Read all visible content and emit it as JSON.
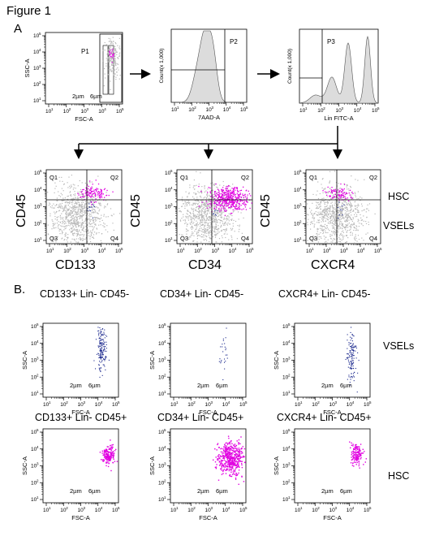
{
  "figure_title": "Figure 1",
  "section_a": "A",
  "section_b": "B.",
  "gating": {
    "fsc_ssc": {
      "x_label": "FSC-A",
      "y_label": "SSC-A",
      "gate": "P1",
      "size_1": "2µm",
      "size_2": "6µm"
    },
    "viability": {
      "x_label": "7AAD-A",
      "y_label": "Count(x 1,000)",
      "gate": "P2"
    },
    "lineage": {
      "x_label": "Lin FITC-A",
      "y_label": "Count(x 1,000)",
      "gate": "P3"
    }
  },
  "quadrants": {
    "q1": "Q1",
    "q2": "Q2",
    "q3": "Q3",
    "q4": "Q4",
    "y_marker": "CD45",
    "x_markers": [
      "CD133",
      "CD34",
      "CXCR4"
    ],
    "hsc": "HSC",
    "vsels": "VSELs"
  },
  "populations": {
    "row1_titles": [
      "CD133+ Lin- CD45-",
      "CD34+ Lin- CD45-",
      "CXCR4+ Lin- CD45-"
    ],
    "row2_titles": [
      "CD133+ Lin- CD45+",
      "CD34+ Lin- CD45+",
      "CXCR4+ Lin- CD45+"
    ],
    "x_label": "FSC-A",
    "y_label": "SSC-A",
    "size_1": "2µm",
    "size_2": "6µm",
    "row1_tag": "VSELs",
    "row2_tag": "HSC"
  },
  "axis": {
    "decades": [
      "10",
      "10",
      "10",
      "10",
      "10"
    ],
    "exps": [
      "1",
      "2",
      "3",
      "4",
      "5"
    ]
  },
  "colors": {
    "vsel_dots": "#1f2c8f",
    "hsc_dots": "#e100e1",
    "bulk_dots": "#b8b8b8",
    "histogram_fill": "#dcdcdc"
  }
}
